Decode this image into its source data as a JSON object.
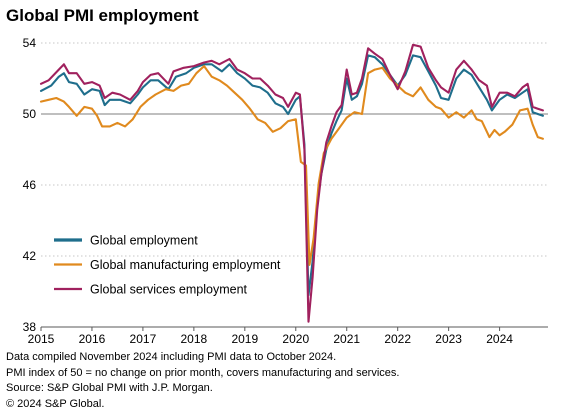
{
  "chart_data": {
    "type": "line",
    "title": "Global PMI employment",
    "xlabel": "",
    "ylabel": "",
    "xlim": [
      2015.0,
      2024.95
    ],
    "ylim": [
      38,
      54
    ],
    "y_ticks": [
      38,
      42,
      46,
      50,
      54
    ],
    "x_tick_labels": [
      "2015",
      "2016",
      "2017",
      "2018",
      "2019",
      "2020",
      "2021",
      "2022",
      "2023",
      "2024"
    ],
    "reference_line": 50,
    "grid": "horizontal dotted",
    "legend_position": "lower-left",
    "series": [
      {
        "name": "Global employment",
        "color": "#1f6e8c",
        "points": [
          [
            2015.0,
            51.3
          ],
          [
            2015.2,
            51.6
          ],
          [
            2015.35,
            52.1
          ],
          [
            2015.45,
            52.3
          ],
          [
            2015.55,
            51.8
          ],
          [
            2015.7,
            51.7
          ],
          [
            2015.85,
            51.1
          ],
          [
            2016.0,
            51.4
          ],
          [
            2016.15,
            51.3
          ],
          [
            2016.25,
            50.5
          ],
          [
            2016.35,
            50.8
          ],
          [
            2016.55,
            50.8
          ],
          [
            2016.75,
            50.6
          ],
          [
            2016.9,
            51.1
          ],
          [
            2017.0,
            51.5
          ],
          [
            2017.15,
            51.9
          ],
          [
            2017.3,
            51.9
          ],
          [
            2017.5,
            51.4
          ],
          [
            2017.65,
            52.1
          ],
          [
            2017.85,
            52.3
          ],
          [
            2018.0,
            52.6
          ],
          [
            2018.2,
            52.8
          ],
          [
            2018.35,
            52.8
          ],
          [
            2018.55,
            52.4
          ],
          [
            2018.7,
            52.8
          ],
          [
            2018.85,
            52.3
          ],
          [
            2019.0,
            52.0
          ],
          [
            2019.15,
            51.6
          ],
          [
            2019.3,
            51.5
          ],
          [
            2019.45,
            51.2
          ],
          [
            2019.6,
            50.6
          ],
          [
            2019.75,
            50.4
          ],
          [
            2019.85,
            50.0
          ],
          [
            2020.0,
            50.8
          ],
          [
            2020.08,
            51.0
          ],
          [
            2020.17,
            48.3
          ],
          [
            2020.25,
            39.8
          ],
          [
            2020.33,
            41.7
          ],
          [
            2020.42,
            45.0
          ],
          [
            2020.5,
            46.6
          ],
          [
            2020.6,
            48.0
          ],
          [
            2020.7,
            48.9
          ],
          [
            2020.8,
            49.6
          ],
          [
            2020.9,
            50.2
          ],
          [
            2021.0,
            52.0
          ],
          [
            2021.1,
            50.8
          ],
          [
            2021.2,
            51.0
          ],
          [
            2021.3,
            51.7
          ],
          [
            2021.42,
            53.3
          ],
          [
            2021.55,
            53.2
          ],
          [
            2021.7,
            52.8
          ],
          [
            2021.85,
            52.2
          ],
          [
            2022.0,
            51.6
          ],
          [
            2022.15,
            52.2
          ],
          [
            2022.3,
            53.3
          ],
          [
            2022.45,
            53.2
          ],
          [
            2022.6,
            52.4
          ],
          [
            2022.75,
            51.6
          ],
          [
            2022.85,
            50.9
          ],
          [
            2023.0,
            50.8
          ],
          [
            2023.15,
            52.0
          ],
          [
            2023.3,
            52.5
          ],
          [
            2023.45,
            52.2
          ],
          [
            2023.6,
            51.5
          ],
          [
            2023.75,
            50.8
          ],
          [
            2023.85,
            50.2
          ],
          [
            2024.0,
            50.8
          ],
          [
            2024.15,
            51.1
          ],
          [
            2024.3,
            50.9
          ],
          [
            2024.45,
            51.2
          ],
          [
            2024.55,
            51.4
          ],
          [
            2024.65,
            50.1
          ],
          [
            2024.75,
            50.0
          ],
          [
            2024.85,
            49.9
          ]
        ]
      },
      {
        "name": "Global manufacturing employment",
        "color": "#e08a1e",
        "points": [
          [
            2015.0,
            50.7
          ],
          [
            2015.15,
            50.8
          ],
          [
            2015.3,
            50.9
          ],
          [
            2015.45,
            50.7
          ],
          [
            2015.55,
            50.4
          ],
          [
            2015.7,
            49.9
          ],
          [
            2015.85,
            50.4
          ],
          [
            2016.0,
            50.3
          ],
          [
            2016.1,
            49.9
          ],
          [
            2016.2,
            49.3
          ],
          [
            2016.35,
            49.3
          ],
          [
            2016.5,
            49.5
          ],
          [
            2016.65,
            49.3
          ],
          [
            2016.8,
            49.7
          ],
          [
            2016.95,
            50.4
          ],
          [
            2017.1,
            50.8
          ],
          [
            2017.25,
            51.1
          ],
          [
            2017.45,
            51.4
          ],
          [
            2017.6,
            51.3
          ],
          [
            2017.75,
            51.6
          ],
          [
            2017.9,
            51.7
          ],
          [
            2018.05,
            52.3
          ],
          [
            2018.2,
            52.7
          ],
          [
            2018.35,
            52.1
          ],
          [
            2018.5,
            51.9
          ],
          [
            2018.65,
            51.6
          ],
          [
            2018.8,
            51.2
          ],
          [
            2018.95,
            50.8
          ],
          [
            2019.1,
            50.3
          ],
          [
            2019.25,
            49.7
          ],
          [
            2019.4,
            49.5
          ],
          [
            2019.55,
            49.0
          ],
          [
            2019.7,
            49.2
          ],
          [
            2019.85,
            49.6
          ],
          [
            2020.0,
            49.7
          ],
          [
            2020.1,
            47.3
          ],
          [
            2020.2,
            47.1
          ],
          [
            2020.27,
            41.5
          ],
          [
            2020.35,
            43.0
          ],
          [
            2020.45,
            46.1
          ],
          [
            2020.55,
            47.8
          ],
          [
            2020.7,
            48.6
          ],
          [
            2020.85,
            49.2
          ],
          [
            2021.0,
            49.8
          ],
          [
            2021.15,
            50.1
          ],
          [
            2021.3,
            50.0
          ],
          [
            2021.42,
            52.3
          ],
          [
            2021.55,
            52.5
          ],
          [
            2021.7,
            52.6
          ],
          [
            2021.85,
            52.0
          ],
          [
            2022.0,
            51.6
          ],
          [
            2022.15,
            51.2
          ],
          [
            2022.3,
            51.0
          ],
          [
            2022.45,
            51.5
          ],
          [
            2022.6,
            50.8
          ],
          [
            2022.75,
            50.4
          ],
          [
            2022.85,
            50.3
          ],
          [
            2023.0,
            49.8
          ],
          [
            2023.15,
            50.1
          ],
          [
            2023.3,
            49.8
          ],
          [
            2023.45,
            50.2
          ],
          [
            2023.55,
            49.7
          ],
          [
            2023.65,
            49.6
          ],
          [
            2023.8,
            48.7
          ],
          [
            2023.9,
            49.1
          ],
          [
            2024.0,
            48.8
          ],
          [
            2024.1,
            49.0
          ],
          [
            2024.25,
            49.4
          ],
          [
            2024.4,
            50.2
          ],
          [
            2024.55,
            50.3
          ],
          [
            2024.65,
            49.4
          ],
          [
            2024.75,
            48.7
          ],
          [
            2024.85,
            48.6
          ]
        ]
      },
      {
        "name": "Global services employment",
        "color": "#a0215e",
        "points": [
          [
            2015.0,
            51.7
          ],
          [
            2015.15,
            51.9
          ],
          [
            2015.35,
            52.5
          ],
          [
            2015.45,
            52.8
          ],
          [
            2015.55,
            52.3
          ],
          [
            2015.7,
            52.3
          ],
          [
            2015.85,
            51.7
          ],
          [
            2016.0,
            51.8
          ],
          [
            2016.15,
            51.6
          ],
          [
            2016.25,
            50.9
          ],
          [
            2016.4,
            51.2
          ],
          [
            2016.55,
            51.1
          ],
          [
            2016.75,
            50.8
          ],
          [
            2016.9,
            51.3
          ],
          [
            2017.0,
            51.8
          ],
          [
            2017.15,
            52.2
          ],
          [
            2017.3,
            52.3
          ],
          [
            2017.5,
            51.7
          ],
          [
            2017.6,
            52.4
          ],
          [
            2017.8,
            52.6
          ],
          [
            2018.0,
            52.7
          ],
          [
            2018.2,
            52.9
          ],
          [
            2018.35,
            53.0
          ],
          [
            2018.5,
            52.8
          ],
          [
            2018.7,
            53.1
          ],
          [
            2018.85,
            52.5
          ],
          [
            2019.0,
            52.3
          ],
          [
            2019.15,
            52.0
          ],
          [
            2019.3,
            52.0
          ],
          [
            2019.45,
            51.6
          ],
          [
            2019.6,
            51.1
          ],
          [
            2019.75,
            50.9
          ],
          [
            2019.85,
            50.4
          ],
          [
            2020.0,
            51.2
          ],
          [
            2020.08,
            51.1
          ],
          [
            2020.17,
            48.0
          ],
          [
            2020.25,
            38.3
          ],
          [
            2020.33,
            40.8
          ],
          [
            2020.42,
            44.6
          ],
          [
            2020.5,
            46.6
          ],
          [
            2020.6,
            48.4
          ],
          [
            2020.7,
            49.3
          ],
          [
            2020.8,
            50.1
          ],
          [
            2020.9,
            50.5
          ],
          [
            2021.0,
            52.5
          ],
          [
            2021.1,
            51.1
          ],
          [
            2021.2,
            51.2
          ],
          [
            2021.3,
            52.0
          ],
          [
            2021.42,
            53.7
          ],
          [
            2021.55,
            53.4
          ],
          [
            2021.7,
            53.1
          ],
          [
            2021.85,
            52.2
          ],
          [
            2022.0,
            51.4
          ],
          [
            2022.15,
            52.4
          ],
          [
            2022.3,
            53.9
          ],
          [
            2022.45,
            53.8
          ],
          [
            2022.6,
            52.6
          ],
          [
            2022.75,
            51.9
          ],
          [
            2022.85,
            51.5
          ],
          [
            2023.0,
            51.2
          ],
          [
            2023.15,
            52.5
          ],
          [
            2023.3,
            53.0
          ],
          [
            2023.45,
            52.5
          ],
          [
            2023.6,
            51.9
          ],
          [
            2023.75,
            51.6
          ],
          [
            2023.85,
            50.4
          ],
          [
            2024.0,
            51.2
          ],
          [
            2024.15,
            51.2
          ],
          [
            2024.3,
            51.0
          ],
          [
            2024.45,
            51.5
          ],
          [
            2024.55,
            51.7
          ],
          [
            2024.65,
            50.4
          ],
          [
            2024.75,
            50.3
          ],
          [
            2024.85,
            50.2
          ]
        ]
      }
    ]
  },
  "notes": [
    "Data compiled November 2024 including PMI data to October 2024.",
    "PMI index of 50 = no change on prior month, covers manufacturing and services.",
    "Source: S&P Global PMI with J.P. Morgan.",
    "© 2024 S&P Global."
  ]
}
